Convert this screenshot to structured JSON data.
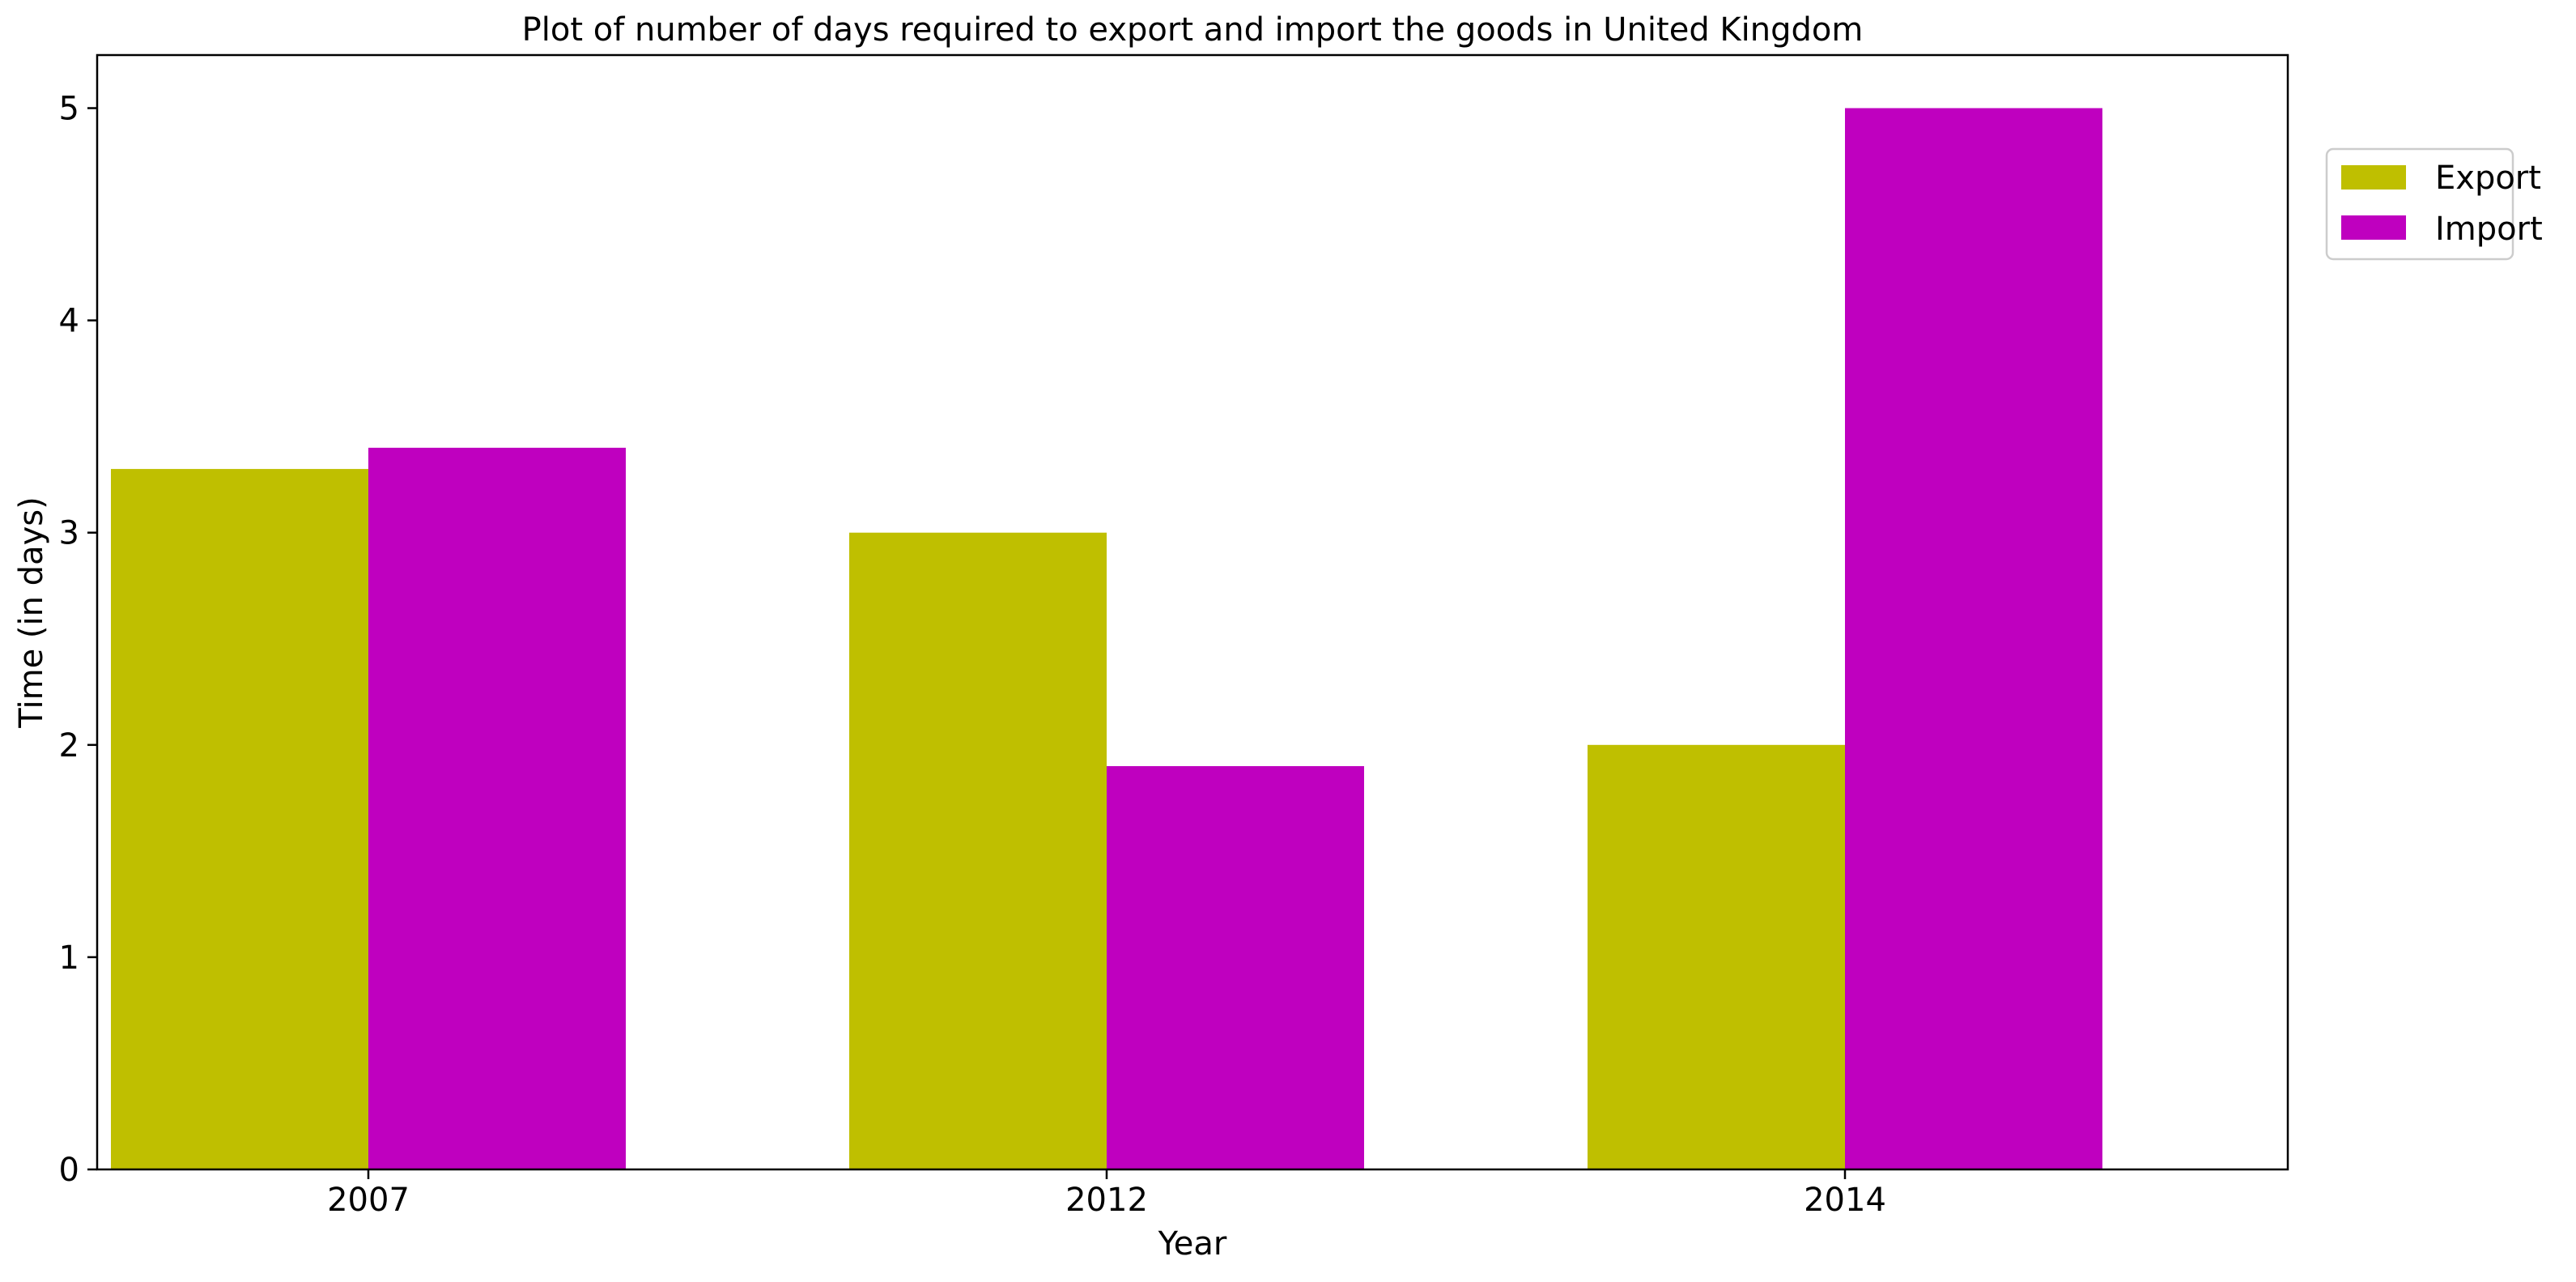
{
  "chart_data": {
    "type": "bar",
    "title": "Plot of number of days required to export and import the goods in United Kingdom",
    "xlabel": "Year",
    "ylabel": "Time (in days)",
    "categories": [
      "2007",
      "2012",
      "2014"
    ],
    "series": [
      {
        "name": "Export",
        "values": [
          3.3,
          3.0,
          2.0
        ],
        "color": "#bfbf00"
      },
      {
        "name": "Import",
        "values": [
          3.4,
          1.9,
          5.0
        ],
        "color": "#bf00bf"
      }
    ],
    "ylim": [
      0,
      5.25
    ],
    "yticks": [
      0,
      1,
      2,
      3,
      4,
      5
    ],
    "grid": false,
    "legend_position": "upper-right-outside"
  }
}
